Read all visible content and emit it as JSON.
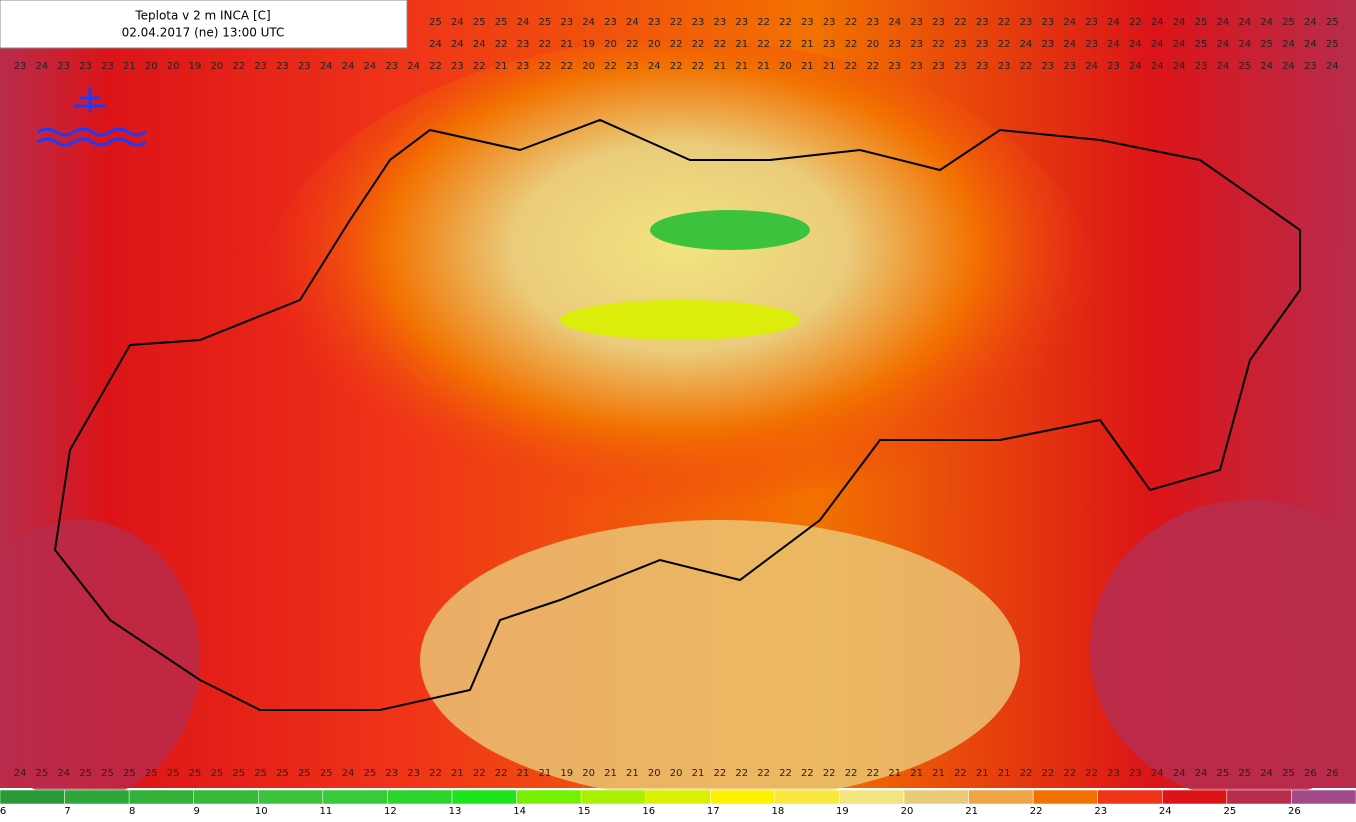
{
  "header": {
    "title": "Teplota v 2 m INCA [C]",
    "subtitle": "02.04.2017 (ne) 13:00 UTC"
  },
  "grid_rows": [
    [
      null,
      null,
      null,
      null,
      null,
      null,
      null,
      null,
      null,
      null,
      null,
      null,
      null,
      null,
      null,
      null,
      null,
      null,
      null,
      25,
      24,
      25,
      25,
      24,
      25,
      23,
      24,
      23,
      24,
      23,
      22,
      23,
      23,
      23,
      22,
      22,
      23,
      23,
      22,
      23,
      24,
      23,
      23,
      22,
      23,
      22,
      23,
      23,
      24,
      23,
      24,
      22,
      24,
      24,
      25,
      24,
      24,
      24,
      25,
      24,
      25
    ],
    [
      null,
      null,
      null,
      null,
      null,
      null,
      null,
      null,
      null,
      null,
      null,
      null,
      null,
      null,
      null,
      null,
      null,
      null,
      null,
      24,
      24,
      24,
      22,
      23,
      22,
      21,
      19,
      20,
      22,
      20,
      22,
      22,
      22,
      21,
      22,
      22,
      21,
      23,
      22,
      20,
      23,
      23,
      22,
      23,
      23,
      22,
      24,
      23,
      24,
      23,
      24,
      24,
      24,
      24,
      25,
      24,
      24,
      25,
      24,
      24,
      25
    ],
    [
      23,
      24,
      23,
      23,
      23,
      21,
      20,
      20,
      19,
      20,
      22,
      23,
      23,
      23,
      24,
      24,
      24,
      23,
      24,
      22,
      23,
      22,
      21,
      23,
      22,
      22,
      20,
      22,
      23,
      24,
      22,
      22,
      21,
      21,
      21,
      20,
      21,
      21,
      22,
      22,
      23,
      23,
      23,
      23,
      23,
      23,
      22,
      23,
      23,
      24,
      23,
      24,
      24,
      24,
      23,
      24,
      25,
      24,
      24,
      23,
      24
    ],
    [
      24,
      25,
      24,
      25,
      25,
      25,
      25,
      25,
      25,
      25,
      25,
      25,
      25,
      25,
      25,
      24,
      25,
      23,
      23,
      22,
      21,
      22,
      22,
      21,
      21,
      19,
      20,
      21,
      21,
      20,
      20,
      21,
      22,
      22,
      22,
      22,
      22,
      22,
      22,
      22,
      21,
      21,
      21,
      22,
      21,
      21,
      22,
      22,
      22,
      22,
      23,
      23,
      24,
      24,
      24,
      25,
      25,
      24,
      25,
      26,
      26
    ]
  ],
  "legend": [
    {
      "value": 6,
      "color": "#2a9a38"
    },
    {
      "value": 7,
      "color": "#2fa63a"
    },
    {
      "value": 8,
      "color": "#34b038"
    },
    {
      "value": 9,
      "color": "#38b93a"
    },
    {
      "value": 10,
      "color": "#3cc23c"
    },
    {
      "value": 11,
      "color": "#38ca38"
    },
    {
      "value": 12,
      "color": "#2ed42e"
    },
    {
      "value": 13,
      "color": "#1ee41e"
    },
    {
      "value": 14,
      "color": "#74f000"
    },
    {
      "value": 15,
      "color": "#aaf000"
    },
    {
      "value": 16,
      "color": "#daf000"
    },
    {
      "value": 17,
      "color": "#fff200"
    },
    {
      "value": 18,
      "color": "#f8e840"
    },
    {
      "value": 19,
      "color": "#f2e480"
    },
    {
      "value": 20,
      "color": "#eacb7a"
    },
    {
      "value": 21,
      "color": "#f0a448"
    },
    {
      "value": 22,
      "color": "#f27200"
    },
    {
      "value": 23,
      "color": "#f03418"
    },
    {
      "value": 24,
      "color": "#dc1418"
    },
    {
      "value": 25,
      "color": "#b82c4c"
    },
    {
      "value": 26,
      "color": "#a04a8a"
    }
  ]
}
